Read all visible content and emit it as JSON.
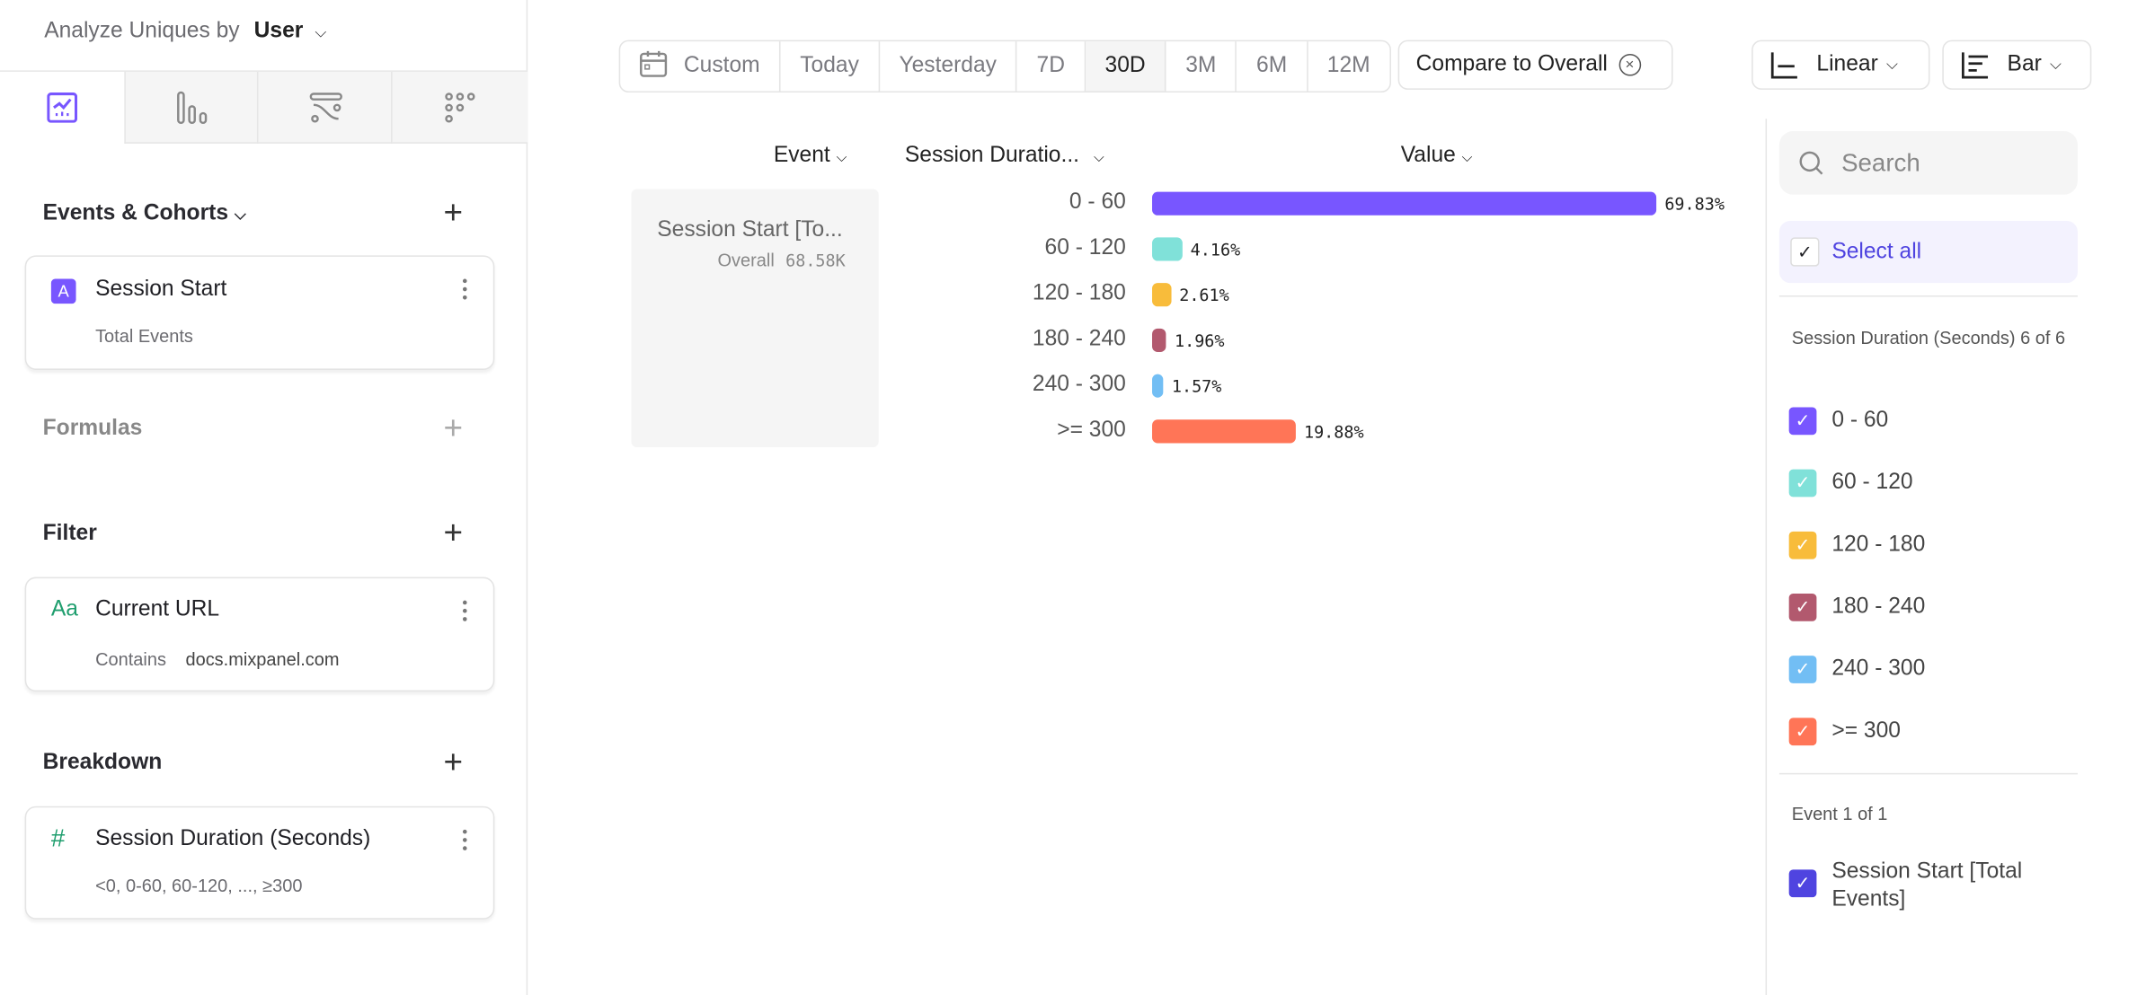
{
  "sidebar": {
    "analyze_label": "Analyze Uniques by",
    "analyze_value": "User",
    "tabs": [
      {
        "icon": "insights-icon",
        "active": true
      },
      {
        "icon": "funnels-icon"
      },
      {
        "icon": "flows-icon"
      },
      {
        "icon": "retention-icon"
      }
    ],
    "events_title": "Events & Cohorts",
    "event": {
      "badge": "A",
      "name": "Session Start",
      "sub": "Total Events"
    },
    "formulas_title": "Formulas",
    "filter_title": "Filter",
    "filter": {
      "badge": "Aa",
      "name": "Current URL",
      "op": "Contains",
      "value": "docs.mixpanel.com"
    },
    "breakdown_title": "Breakdown",
    "breakdown": {
      "badge": "#",
      "name": "Session Duration (Seconds)",
      "sub": "<0, 0-60, 60-120, ..., ≥300"
    }
  },
  "toolbar": {
    "date_ranges": [
      "Custom",
      "Today",
      "Yesterday",
      "7D",
      "30D",
      "3M",
      "6M",
      "12M"
    ],
    "selected_range": "30D",
    "compare": "Compare to Overall",
    "scale": "Linear",
    "chart_type": "Bar"
  },
  "table": {
    "headers": [
      "Event",
      "Session Duratio...",
      "Value"
    ],
    "event_cell": {
      "name": "Session Start [To...",
      "overall_label": "Overall",
      "overall_value": "68.58K"
    }
  },
  "chart_data": {
    "type": "bar",
    "orientation": "horizontal",
    "categories": [
      "0 - 60",
      "60 - 120",
      "120 - 180",
      "180 - 240",
      "240 - 300",
      ">= 300"
    ],
    "values": [
      69.83,
      4.16,
      2.61,
      1.96,
      1.57,
      19.88
    ],
    "labels": [
      "69.83%",
      "4.16%",
      "2.61%",
      "1.96%",
      "1.57%",
      "19.88%"
    ],
    "colors": [
      "#7856ff",
      "#80e1d9",
      "#f8bc3b",
      "#b2596e",
      "#72bef4",
      "#ff7557"
    ]
  },
  "legend": {
    "search_placeholder": "Search",
    "select_all": "Select all",
    "group_title": "Session Duration (Seconds) 6 of 6",
    "items": [
      "0 - 60",
      "60 - 120",
      "120 - 180",
      "180 - 240",
      "240 - 300",
      ">= 300"
    ],
    "event_group_title": "Event 1 of 1",
    "event_item": "Session Start [Total Events]",
    "event_color": "#4f44e0"
  }
}
